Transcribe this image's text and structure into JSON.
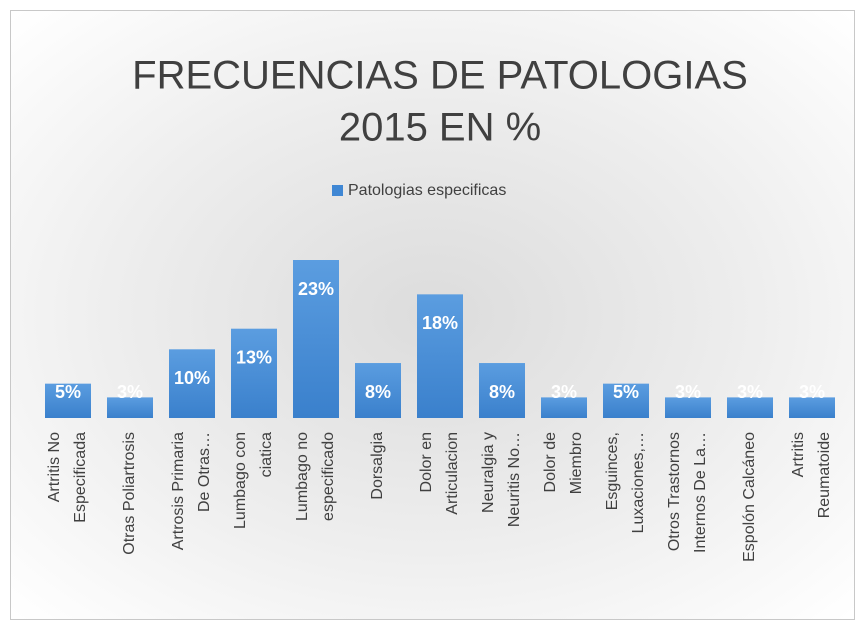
{
  "chart_data": {
    "type": "bar",
    "title": [
      "FRECUENCIAS DE PATOLOGIAS",
      "2015 EN %"
    ],
    "legend": "Patologias especificas",
    "color": "#3f87d4",
    "categories": [
      [
        "Artritis No",
        "Especificada"
      ],
      [
        "Otras Poliartrosis"
      ],
      [
        "Artrosis Primaria",
        "De Otras…"
      ],
      [
        "Lumbago con",
        "ciatica"
      ],
      [
        "Lumbago no",
        "especificado"
      ],
      [
        "Dorsalgia"
      ],
      [
        "Dolor en",
        "Articulacion"
      ],
      [
        "Neuralgia y",
        "Neuritis No…"
      ],
      [
        "Dolor de",
        "Miembro"
      ],
      [
        "Esguinces,",
        "Luxaciones,…"
      ],
      [
        "Otros Trastornos",
        "Internos De La…"
      ],
      [
        "Espolón Calcáneo"
      ],
      [
        "Artritis",
        "Reumatoide"
      ]
    ],
    "values": [
      5,
      3,
      10,
      13,
      23,
      8,
      18,
      8,
      3,
      5,
      3,
      3,
      3
    ],
    "value_labels": [
      "5%",
      "3%",
      "10%",
      "13%",
      "23%",
      "8%",
      "18%",
      "8%",
      "3%",
      "5%",
      "3%",
      "3%",
      "3%"
    ]
  }
}
